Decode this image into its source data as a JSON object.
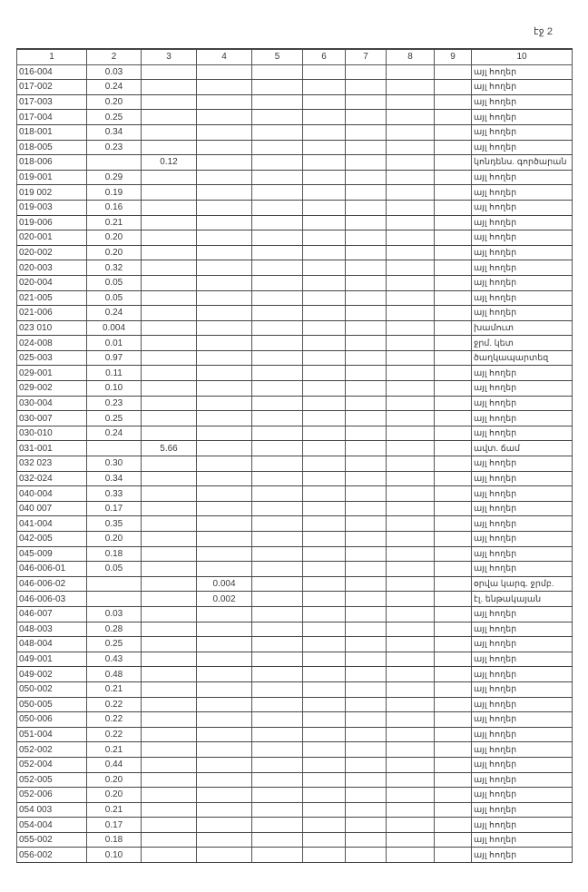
{
  "page_label": "էջ 2",
  "columns": [
    "1",
    "2",
    "3",
    "4",
    "5",
    "6",
    "7",
    "8",
    "9",
    "10"
  ],
  "rows": [
    {
      "c1": "016-004",
      "c2": "0.03",
      "c3": "",
      "c4": "",
      "c10": "այլ հողեր"
    },
    {
      "c1": "017-002",
      "c2": "0.24",
      "c3": "",
      "c4": "",
      "c10": "այլ հողեր"
    },
    {
      "c1": "017-003",
      "c2": "0.20",
      "c3": "",
      "c4": "",
      "c10": "այլ հողեր"
    },
    {
      "c1": "017-004",
      "c2": "0.25",
      "c3": "",
      "c4": "",
      "c10": "այլ հողեր"
    },
    {
      "c1": "018-001",
      "c2": "0.34",
      "c3": "",
      "c4": "",
      "c10": "այլ հողեր"
    },
    {
      "c1": "018-005",
      "c2": "0.23",
      "c3": "",
      "c4": "",
      "c10": "այլ հողեր"
    },
    {
      "c1": "018-006",
      "c2": "",
      "c3": "0.12",
      "c4": "",
      "c10": "կոնդենս. գործարան"
    },
    {
      "c1": "019-001",
      "c2": "0.29",
      "c3": "",
      "c4": "",
      "c10": "այլ հողեր"
    },
    {
      "c1": "019 002",
      "c2": "0.19",
      "c3": "",
      "c4": "",
      "c10": "այլ հողեր"
    },
    {
      "c1": "019-003",
      "c2": "0.16",
      "c3": "",
      "c4": "",
      "c10": "այլ հողեր"
    },
    {
      "c1": "019-006",
      "c2": "0.21",
      "c3": "",
      "c4": "",
      "c10": "այլ հողեր"
    },
    {
      "c1": "020-001",
      "c2": "0.20",
      "c3": "",
      "c4": "",
      "c10": "այլ հողեր"
    },
    {
      "c1": "020-002",
      "c2": "0.20",
      "c3": "",
      "c4": "",
      "c10": "այլ հողեր"
    },
    {
      "c1": "020-003",
      "c2": "0.32",
      "c3": "",
      "c4": "",
      "c10": "այլ հողեր"
    },
    {
      "c1": "020-004",
      "c2": "0.05",
      "c3": "",
      "c4": "",
      "c10": "այլ հողեր"
    },
    {
      "c1": "021-005",
      "c2": "0.05",
      "c3": "",
      "c4": "",
      "c10": "այլ հողեր"
    },
    {
      "c1": "021-006",
      "c2": "0.24",
      "c3": "",
      "c4": "",
      "c10": "այլ հողեր"
    },
    {
      "c1": "023 010",
      "c2": "0.004",
      "c3": "",
      "c4": "",
      "c10": "խամուտ"
    },
    {
      "c1": "024-008",
      "c2": "0.01",
      "c3": "",
      "c4": "",
      "c10": "ջրմ. կետ"
    },
    {
      "c1": "025-003",
      "c2": "0.97",
      "c3": "",
      "c4": "",
      "c10": "ծաղկապարտեզ"
    },
    {
      "c1": "029-001",
      "c2": "0.11",
      "c3": "",
      "c4": "",
      "c10": "այլ հողեր"
    },
    {
      "c1": "029-002",
      "c2": "0.10",
      "c3": "",
      "c4": "",
      "c10": "այլ հողեր"
    },
    {
      "c1": "030-004",
      "c2": "0.23",
      "c3": "",
      "c4": "",
      "c10": "այլ հողեր"
    },
    {
      "c1": "030-007",
      "c2": "0.25",
      "c3": "",
      "c4": "",
      "c10": "այլ հողեր"
    },
    {
      "c1": "030-010",
      "c2": "0.24",
      "c3": "",
      "c4": "",
      "c10": "այլ հողեր"
    },
    {
      "c1": "031-001",
      "c2": "",
      "c3": "5.66",
      "c4": "",
      "c10": "ավտ. ճամ"
    },
    {
      "c1": "032 023",
      "c2": "0.30",
      "c3": "",
      "c4": "",
      "c10": "այլ հողեր"
    },
    {
      "c1": "032-024",
      "c2": "0.34",
      "c3": "",
      "c4": "",
      "c10": "այլ հողեր"
    },
    {
      "c1": "040-004",
      "c2": "0.33",
      "c3": "",
      "c4": "",
      "c10": "այլ հողեր"
    },
    {
      "c1": "040 007",
      "c2": "0.17",
      "c3": "",
      "c4": "",
      "c10": "այլ հողեր"
    },
    {
      "c1": "041-004",
      "c2": "0.35",
      "c3": "",
      "c4": "",
      "c10": "այլ հողեր"
    },
    {
      "c1": "042-005",
      "c2": "0.20",
      "c3": "",
      "c4": "",
      "c10": "այլ հողեր"
    },
    {
      "c1": "045-009",
      "c2": "0.18",
      "c3": "",
      "c4": "",
      "c10": "այլ հողեր"
    },
    {
      "c1": "046-006-01",
      "c2": "0.05",
      "c3": "",
      "c4": "",
      "c10": "այլ հողեր"
    },
    {
      "c1": "046-006-02",
      "c2": "",
      "c3": "",
      "c4": "0.004",
      "c10": "օրվա կարգ. ջրմբ."
    },
    {
      "c1": "046-006-03",
      "c2": "",
      "c3": "",
      "c4": "0.002",
      "c10": "էլ. ենթակայան"
    },
    {
      "c1": "046-007",
      "c2": "0.03",
      "c3": "",
      "c4": "",
      "c10": "այլ հողեր"
    },
    {
      "c1": "048-003",
      "c2": "0.28",
      "c3": "",
      "c4": "",
      "c10": "այլ հողեր"
    },
    {
      "c1": "048-004",
      "c2": "0.25",
      "c3": "",
      "c4": "",
      "c10": "այլ հողեր"
    },
    {
      "c1": "049-001",
      "c2": "0.43",
      "c3": "",
      "c4": "",
      "c10": "այլ հողեր"
    },
    {
      "c1": "049-002",
      "c2": "0.48",
      "c3": "",
      "c4": "",
      "c10": "այլ հողեր"
    },
    {
      "c1": "050-002",
      "c2": "0.21",
      "c3": "",
      "c4": "",
      "c10": "այլ հողեր"
    },
    {
      "c1": "050-005",
      "c2": "0.22",
      "c3": "",
      "c4": "",
      "c10": "այլ հողեր"
    },
    {
      "c1": "050-006",
      "c2": "0.22",
      "c3": "",
      "c4": "",
      "c10": "այլ հողեր"
    },
    {
      "c1": "051-004",
      "c2": "0.22",
      "c3": "",
      "c4": "",
      "c10": "այլ հողեր"
    },
    {
      "c1": "052-002",
      "c2": "0.21",
      "c3": "",
      "c4": "",
      "c10": "այլ հողեր"
    },
    {
      "c1": "052-004",
      "c2": "0.44",
      "c3": "",
      "c4": "",
      "c10": "այլ հողեր"
    },
    {
      "c1": "052-005",
      "c2": "0.20",
      "c3": "",
      "c4": "",
      "c10": "այլ հողեր"
    },
    {
      "c1": "052-006",
      "c2": "0.20",
      "c3": "",
      "c4": "",
      "c10": "այլ հողեր"
    },
    {
      "c1": "054 003",
      "c2": "0.21",
      "c3": "",
      "c4": "",
      "c10": "այլ հողեր"
    },
    {
      "c1": "054-004",
      "c2": "0.17",
      "c3": "",
      "c4": "",
      "c10": "այլ հողեր"
    },
    {
      "c1": "055-002",
      "c2": "0.18",
      "c3": "",
      "c4": "",
      "c10": "այլ հողեր"
    },
    {
      "c1": "056-002",
      "c2": "0.10",
      "c3": "",
      "c4": "",
      "c10": "այլ հողեր"
    }
  ]
}
